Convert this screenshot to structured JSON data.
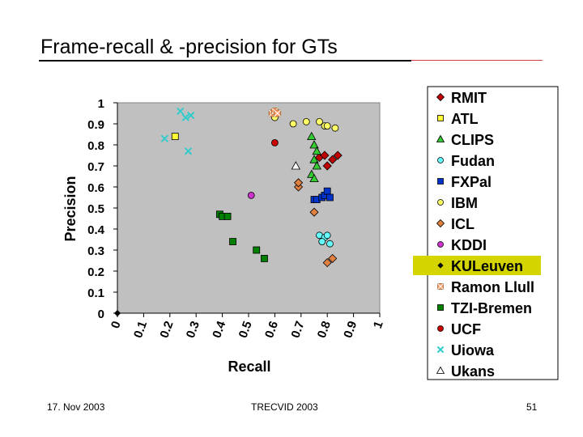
{
  "slide": {
    "title": "Frame-recall & -precision for GTs",
    "footer_left": "17. Nov 2003",
    "footer_center": "TRECVID 2003",
    "footer_right": "51"
  },
  "colors": {
    "plot_bg": "#c0c0c0",
    "highlight": "#d4d400"
  },
  "chart_data": {
    "type": "scatter",
    "title": "",
    "xlabel": "Recall",
    "ylabel": "Precision",
    "xlim": [
      0,
      1
    ],
    "ylim": [
      0,
      1
    ],
    "x_ticks": [
      "0",
      "0.1",
      "0.2",
      "0.3",
      "0.4",
      "0.5",
      "0.6",
      "0.7",
      "0.8",
      "0.9",
      "1"
    ],
    "y_ticks": [
      "0",
      "0.1",
      "0.2",
      "0.3",
      "0.4",
      "0.5",
      "0.6",
      "0.7",
      "0.8",
      "0.9",
      "1"
    ],
    "grid": false,
    "legend_position": "right",
    "highlighted_series": "KULeuven",
    "series": [
      {
        "name": "RMIT",
        "marker": "diamond",
        "color": "#c00000",
        "points": [
          [
            0.77,
            0.74
          ],
          [
            0.79,
            0.75
          ],
          [
            0.8,
            0.7
          ],
          [
            0.82,
            0.73
          ],
          [
            0.84,
            0.75
          ]
        ]
      },
      {
        "name": "ATL",
        "marker": "square",
        "color": "#ffff33",
        "points": [
          [
            0.22,
            0.84
          ]
        ]
      },
      {
        "name": "CLIPS",
        "marker": "triangle",
        "color": "#33cc33",
        "points": [
          [
            0.74,
            0.84
          ],
          [
            0.75,
            0.8
          ],
          [
            0.76,
            0.77
          ],
          [
            0.75,
            0.73
          ],
          [
            0.76,
            0.7
          ],
          [
            0.74,
            0.66
          ],
          [
            0.75,
            0.64
          ]
        ]
      },
      {
        "name": "Fudan",
        "marker": "circle",
        "color": "#66ffff",
        "points": [
          [
            0.77,
            0.37
          ],
          [
            0.79,
            0.36
          ],
          [
            0.8,
            0.37
          ],
          [
            0.78,
            0.34
          ],
          [
            0.81,
            0.33
          ]
        ]
      },
      {
        "name": "FXPal",
        "marker": "square",
        "color": "#0033cc",
        "points": [
          [
            0.75,
            0.54
          ],
          [
            0.76,
            0.54
          ],
          [
            0.78,
            0.55
          ],
          [
            0.79,
            0.56
          ],
          [
            0.8,
            0.58
          ],
          [
            0.81,
            0.55
          ]
        ]
      },
      {
        "name": "IBM",
        "marker": "circle",
        "color": "#ffff66",
        "points": [
          [
            0.6,
            0.93
          ],
          [
            0.67,
            0.9
          ],
          [
            0.72,
            0.91
          ],
          [
            0.77,
            0.91
          ],
          [
            0.79,
            0.89
          ],
          [
            0.8,
            0.89
          ],
          [
            0.83,
            0.88
          ]
        ]
      },
      {
        "name": "ICL",
        "marker": "diamond",
        "color": "#e08040",
        "points": [
          [
            0.69,
            0.6
          ],
          [
            0.69,
            0.62
          ],
          [
            0.75,
            0.48
          ],
          [
            0.8,
            0.24
          ],
          [
            0.82,
            0.26
          ]
        ]
      },
      {
        "name": "KDDI",
        "marker": "circle",
        "color": "#cc33cc",
        "points": [
          [
            0.51,
            0.56
          ]
        ]
      },
      {
        "name": "KULeuven",
        "marker": "diamond",
        "color": "#000000",
        "points": [
          [
            0.0,
            0.0
          ]
        ]
      },
      {
        "name": "Ramon Llull",
        "marker": "x-square",
        "color": "#ff9966",
        "points": [
          [
            0.59,
            0.95
          ],
          [
            0.6,
            0.96
          ],
          [
            0.61,
            0.95
          ]
        ]
      },
      {
        "name": "TZI-Bremen",
        "marker": "square",
        "color": "#008000",
        "points": [
          [
            0.39,
            0.47
          ],
          [
            0.4,
            0.46
          ],
          [
            0.42,
            0.46
          ],
          [
            0.44,
            0.34
          ],
          [
            0.53,
            0.3
          ],
          [
            0.56,
            0.26
          ]
        ]
      },
      {
        "name": "UCF",
        "marker": "circle",
        "color": "#cc0000",
        "points": [
          [
            0.6,
            0.81
          ]
        ]
      },
      {
        "name": "Uiowa",
        "marker": "x",
        "color": "#33cccc",
        "points": [
          [
            0.24,
            0.96
          ],
          [
            0.26,
            0.93
          ],
          [
            0.28,
            0.94
          ],
          [
            0.27,
            0.77
          ],
          [
            0.18,
            0.83
          ]
        ]
      },
      {
        "name": "Ukans",
        "marker": "triangle",
        "color": "#ffffff",
        "points": [
          [
            0.68,
            0.7
          ]
        ]
      }
    ]
  }
}
